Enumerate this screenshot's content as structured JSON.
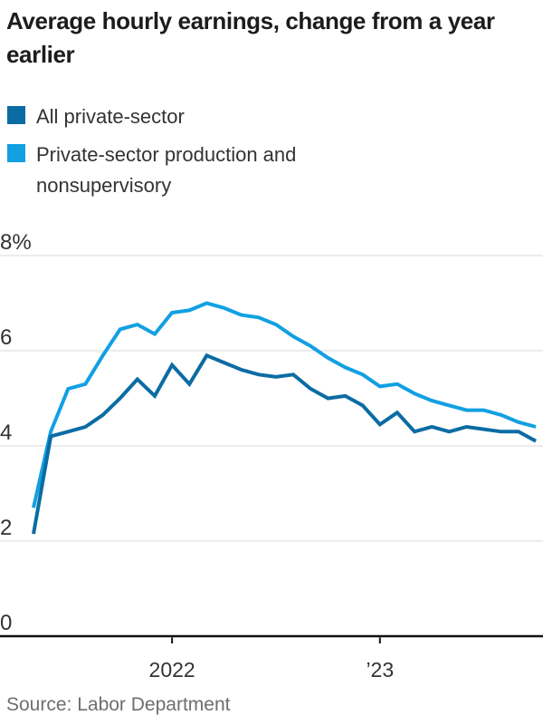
{
  "title": "Average hourly earnings, change from a year earlier",
  "source": "Source: Labor Department",
  "chart_data": {
    "type": "line",
    "x": [
      "2021-05",
      "2021-06",
      "2021-07",
      "2021-08",
      "2021-09",
      "2021-10",
      "2021-11",
      "2021-12",
      "2022-01",
      "2022-02",
      "2022-03",
      "2022-04",
      "2022-05",
      "2022-06",
      "2022-07",
      "2022-08",
      "2022-09",
      "2022-10",
      "2022-11",
      "2022-12",
      "2023-01",
      "2023-02",
      "2023-03",
      "2023-04",
      "2023-05",
      "2023-06",
      "2023-07",
      "2023-08",
      "2023-09",
      "2023-10"
    ],
    "series": [
      {
        "name": "All private-sector",
        "color": "#0b6ca3",
        "values": [
          2.15,
          4.2,
          4.3,
          4.4,
          4.65,
          5.0,
          5.4,
          5.05,
          5.7,
          5.3,
          5.9,
          5.75,
          5.6,
          5.5,
          5.45,
          5.5,
          5.2,
          5.0,
          5.05,
          4.85,
          4.45,
          4.7,
          4.3,
          4.4,
          4.3,
          4.4,
          4.35,
          4.3,
          4.3,
          4.1
        ]
      },
      {
        "name": "Private-sector production and nonsupervisory",
        "color": "#12a0e2",
        "values": [
          2.7,
          4.3,
          5.2,
          5.3,
          5.9,
          6.45,
          6.55,
          6.35,
          6.8,
          6.85,
          7.0,
          6.9,
          6.75,
          6.7,
          6.55,
          6.3,
          6.1,
          5.85,
          5.65,
          5.5,
          5.25,
          5.3,
          5.1,
          4.95,
          4.85,
          4.75,
          4.75,
          4.65,
          4.5,
          4.4
        ]
      }
    ],
    "ylim": [
      0,
      8
    ],
    "yticks": [
      {
        "value": 0,
        "label": "0"
      },
      {
        "value": 2,
        "label": "2"
      },
      {
        "value": 4,
        "label": "4"
      },
      {
        "value": 6,
        "label": "6"
      },
      {
        "value": 8,
        "label": "8%"
      }
    ],
    "xticks": [
      {
        "index": 8,
        "label": "2022"
      },
      {
        "index": 20,
        "label": "’23"
      }
    ],
    "grid": "horizontal",
    "legend_position": "top-left",
    "colors": {
      "gridline": "#d9d9d9",
      "axis": "#111111",
      "axis_label": "#333333"
    }
  }
}
